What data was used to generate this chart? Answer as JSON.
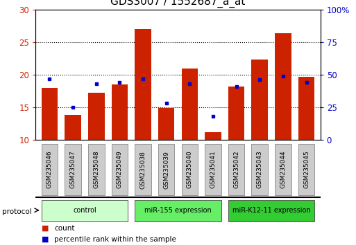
{
  "title": "GDS3007 / 1552687_a_at",
  "samples": [
    "GSM235046",
    "GSM235047",
    "GSM235048",
    "GSM235049",
    "GSM235038",
    "GSM235039",
    "GSM235040",
    "GSM235041",
    "GSM235042",
    "GSM235043",
    "GSM235044",
    "GSM235045"
  ],
  "red_values": [
    18.0,
    13.8,
    17.2,
    18.5,
    27.0,
    14.9,
    21.0,
    11.2,
    18.2,
    22.3,
    26.4,
    19.7
  ],
  "blue_pct": [
    47,
    25,
    43,
    44,
    47,
    28,
    43,
    18,
    41,
    46,
    49,
    44
  ],
  "ylim": [
    10,
    30
  ],
  "y2lim": [
    0,
    100
  ],
  "yticks": [
    10,
    15,
    20,
    25,
    30
  ],
  "y2ticks": [
    0,
    25,
    50,
    75,
    100
  ],
  "groups": [
    {
      "label": "control",
      "start": 0,
      "end": 4,
      "color": "#ccffcc"
    },
    {
      "label": "miR-155 expression",
      "start": 4,
      "end": 8,
      "color": "#66ee66"
    },
    {
      "label": "miR-K12-11 expression",
      "start": 8,
      "end": 12,
      "color": "#33cc33"
    }
  ],
  "bar_color": "#cc2200",
  "dot_color": "#0000cc",
  "bar_width": 0.7,
  "protocol_label": "protocol",
  "legend_count": "count",
  "legend_pct": "percentile rank within the sample",
  "title_fontsize": 11,
  "left_tick_color": "#cc2200",
  "right_tick_color": "#0000cc",
  "sample_box_color": "#cccccc",
  "sample_box_edge": "#888888"
}
